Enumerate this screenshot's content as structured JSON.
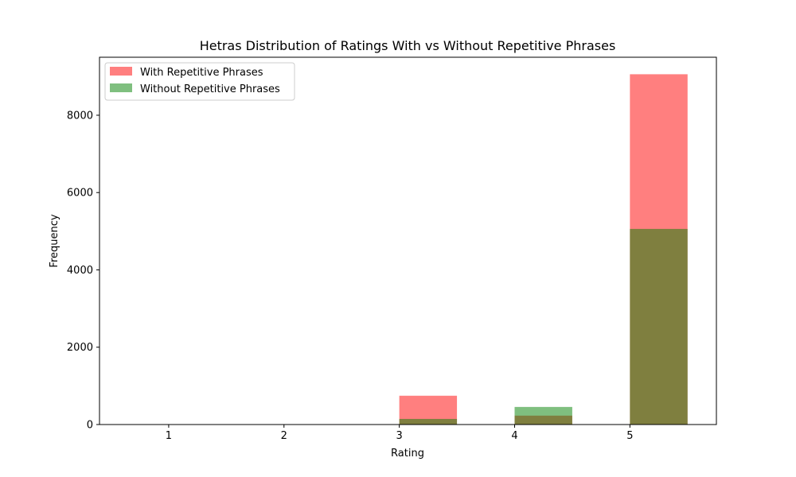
{
  "chart_data": {
    "type": "bar",
    "title": "Hetras Distribution of Ratings With vs Without Repetitive Phrases",
    "xlabel": "Rating",
    "ylabel": "Frequency",
    "xlim": [
      0.4,
      5.75
    ],
    "ylim": [
      0,
      9500
    ],
    "x_ticks": [
      1,
      2,
      3,
      4,
      5
    ],
    "y_ticks": [
      0,
      2000,
      4000,
      6000,
      8000
    ],
    "grid": false,
    "legend_position": "top-left",
    "bin_edges": [
      1.0,
      1.5,
      2.0,
      2.5,
      3.0,
      3.5,
      4.0,
      4.5,
      5.0,
      5.5
    ],
    "series": [
      {
        "name": "With Repetitive Phrases",
        "color": "#ff0000",
        "alpha": 0.5,
        "values": [
          0,
          0,
          0,
          0,
          745,
          0,
          230,
          0,
          9060
        ]
      },
      {
        "name": "Without Repetitive Phrases",
        "color": "#008000",
        "alpha": 0.5,
        "values": [
          0,
          0,
          0,
          0,
          145,
          0,
          455,
          0,
          5060
        ]
      }
    ]
  }
}
